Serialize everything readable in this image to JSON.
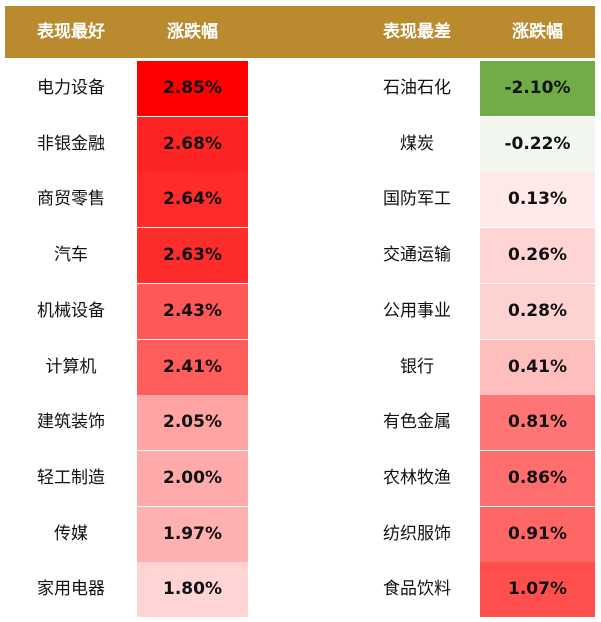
{
  "chart_data": {
    "type": "table",
    "columns": [
      "表现最好",
      "涨跌幅",
      "表现最差",
      "涨跌幅"
    ],
    "best": [
      {
        "name": "电力设备",
        "value": "2.85%",
        "color": "#FF0000"
      },
      {
        "name": "非银金融",
        "value": "2.68%",
        "color": "#FF2424"
      },
      {
        "name": "商贸零售",
        "value": "2.64%",
        "color": "#FF2A2A"
      },
      {
        "name": "汽车",
        "value": "2.63%",
        "color": "#FF2C2C"
      },
      {
        "name": "机械设备",
        "value": "2.43%",
        "color": "#FF5858"
      },
      {
        "name": "计算机",
        "value": "2.41%",
        "color": "#FF5C5C"
      },
      {
        "name": "建筑装饰",
        "value": "2.05%",
        "color": "#FFA3A3"
      },
      {
        "name": "轻工制造",
        "value": "2.00%",
        "color": "#FFAAAA"
      },
      {
        "name": "传媒",
        "value": "1.97%",
        "color": "#FFB0B0"
      },
      {
        "name": "家用电器",
        "value": "1.80%",
        "color": "#FFD4D4"
      }
    ],
    "worst": [
      {
        "name": "石油石化",
        "value": "-2.10%",
        "color": "#70AD47"
      },
      {
        "name": "煤炭",
        "value": "-0.22%",
        "color": "#F1F6EE"
      },
      {
        "name": "国防军工",
        "value": "0.13%",
        "color": "#FFE8E8"
      },
      {
        "name": "交通运输",
        "value": "0.26%",
        "color": "#FFD4D4"
      },
      {
        "name": "公用事业",
        "value": "0.28%",
        "color": "#FFD2D2"
      },
      {
        "name": "银行",
        "value": "0.41%",
        "color": "#FFBEBE"
      },
      {
        "name": "有色金属",
        "value": "0.81%",
        "color": "#FF7575"
      },
      {
        "name": "农林牧渔",
        "value": "0.86%",
        "color": "#FF6E6E"
      },
      {
        "name": "纺织服饰",
        "value": "0.91%",
        "color": "#FF6767"
      },
      {
        "name": "食品饮料",
        "value": "1.07%",
        "color": "#FF4E4E"
      }
    ],
    "header_color": "#B98A2E"
  }
}
